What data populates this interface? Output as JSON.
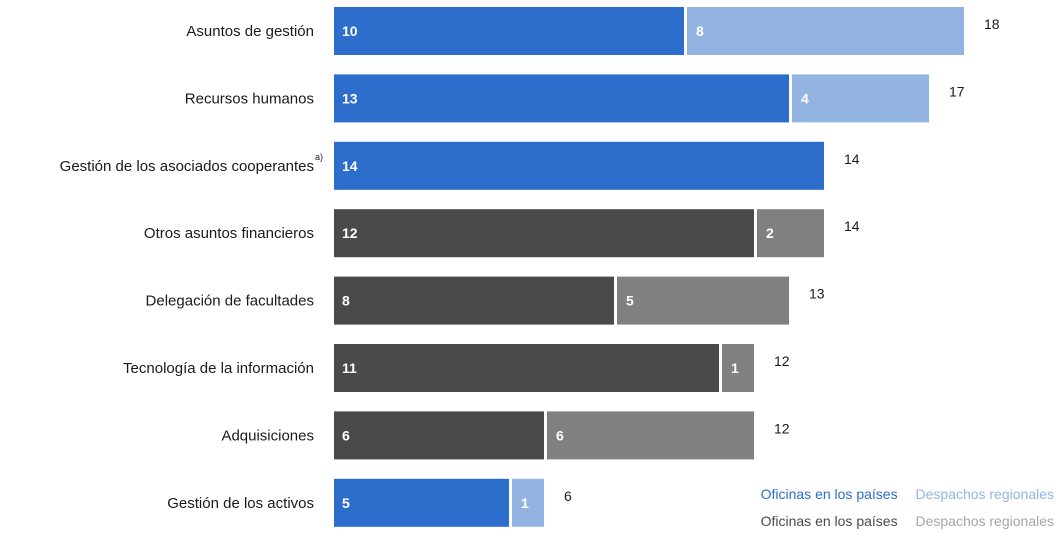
{
  "colors": {
    "blue_dark": "#2d6dcc",
    "blue_light": "#93b4e3",
    "gray_dark": "#4a4a4a",
    "gray_light": "#808080",
    "legend_gray_dark": "#4a4a4a",
    "legend_gray_light": "#a6a6a6"
  },
  "legend": {
    "blue": {
      "country": "Oficinas en los países",
      "regional": "Despachos regionales"
    },
    "gray": {
      "country": "Oficinas en los países",
      "regional": "Despachos regionales"
    }
  },
  "chart_data": {
    "type": "bar",
    "orientation": "horizontal",
    "stacked": true,
    "categories": [
      "Asuntos de gestión",
      "Recursos humanos",
      "Gestión de los asociados cooperantes",
      "Otros asuntos financieros",
      "Delegación de facultades",
      "Tecnología de la información",
      "Adquisiciones",
      "Gestión de los activos"
    ],
    "category_footnotes": [
      "",
      "",
      "a)",
      "",
      "",
      "",
      "",
      ""
    ],
    "series": [
      {
        "name": "Oficinas en los países",
        "values": [
          10,
          13,
          14,
          12,
          8,
          11,
          6,
          5
        ]
      },
      {
        "name": "Despachos regionales",
        "values": [
          8,
          4,
          0,
          2,
          5,
          1,
          6,
          1
        ]
      }
    ],
    "totals": [
      18,
      17,
      14,
      14,
      13,
      12,
      12,
      6
    ],
    "bar_color_group": [
      "blue",
      "blue",
      "blue",
      "gray",
      "gray",
      "gray",
      "gray",
      "blue"
    ],
    "xlim": [
      0,
      18
    ],
    "grid": false,
    "legend_position": "bottom-right"
  }
}
